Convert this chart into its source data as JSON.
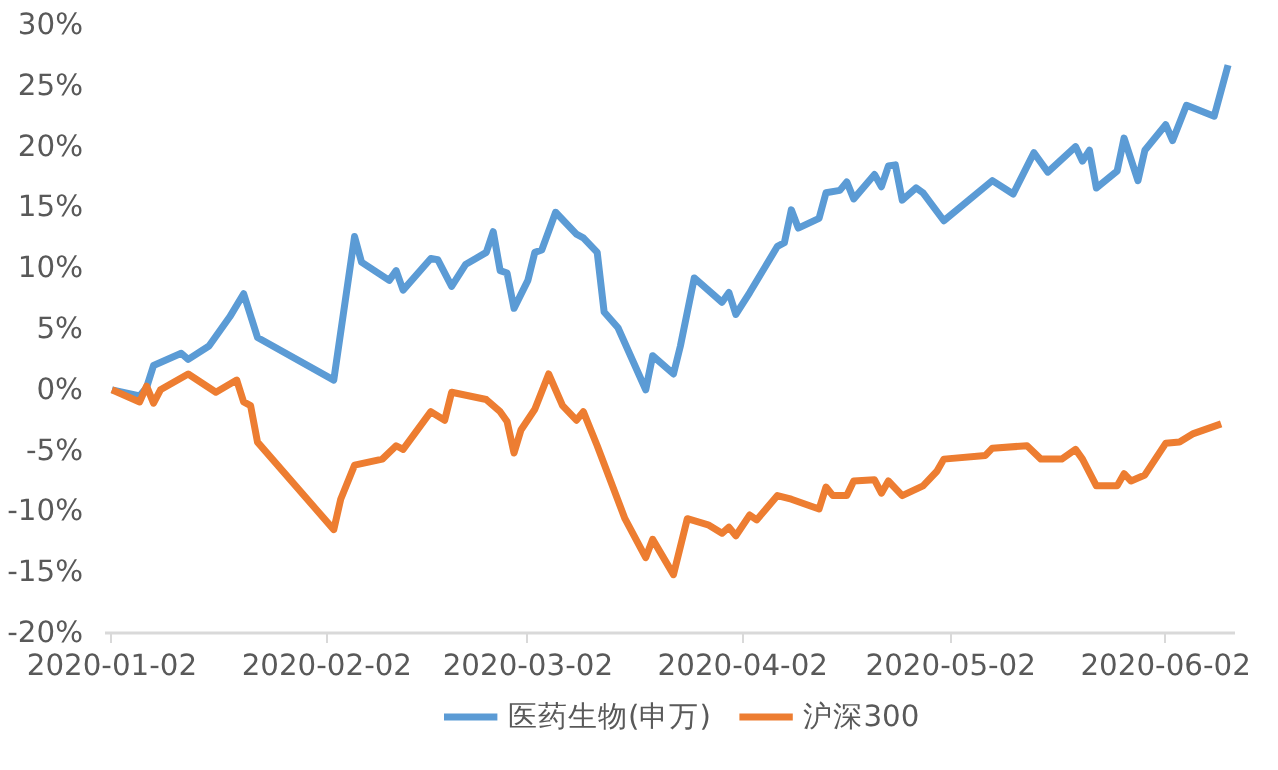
{
  "chart_data": {
    "type": "line",
    "ylim": [
      -20,
      30
    ],
    "yticks": [
      {
        "value": 30,
        "label": "30%"
      },
      {
        "value": 25,
        "label": "25%"
      },
      {
        "value": 20,
        "label": "20%"
      },
      {
        "value": 15,
        "label": "15%"
      },
      {
        "value": 10,
        "label": "10%"
      },
      {
        "value": 5,
        "label": "5%"
      },
      {
        "value": 0,
        "label": "0%"
      },
      {
        "value": -5,
        "label": "-5%"
      },
      {
        "value": -10,
        "label": "-10%"
      },
      {
        "value": -15,
        "label": "-15%"
      },
      {
        "value": -20,
        "label": "-20%"
      }
    ],
    "xlim": [
      "2020-01-01",
      "2020-06-12"
    ],
    "xticks": [
      {
        "value": "2020-01-02",
        "label": "2020-01-02"
      },
      {
        "value": "2020-02-02",
        "label": "2020-02-02"
      },
      {
        "value": "2020-03-02",
        "label": "2020-03-02"
      },
      {
        "value": "2020-04-02",
        "label": "2020-04-02"
      },
      {
        "value": "2020-05-02",
        "label": "2020-05-02"
      },
      {
        "value": "2020-06-02",
        "label": "2020-06-02"
      }
    ],
    "grid": false,
    "legend": "bottom",
    "marker": "none",
    "line_style": "solid",
    "series": [
      {
        "name": "医药生物(申万)",
        "color": "#5b9bd5",
        "x": [
          "2020-01-02",
          "2020-01-06",
          "2020-01-07",
          "2020-01-08",
          "2020-01-12",
          "2020-01-13",
          "2020-01-16",
          "2020-01-19",
          "2020-01-21",
          "2020-01-23",
          "2020-02-03",
          "2020-02-06",
          "2020-02-07",
          "2020-02-11",
          "2020-02-12",
          "2020-02-13",
          "2020-02-17",
          "2020-02-18",
          "2020-02-20",
          "2020-02-22",
          "2020-02-25",
          "2020-02-26",
          "2020-02-27",
          "2020-02-28",
          "2020-02-29",
          "2020-03-02",
          "2020-03-03",
          "2020-03-04",
          "2020-03-06",
          "2020-03-09",
          "2020-03-10",
          "2020-03-12",
          "2020-03-13",
          "2020-03-15",
          "2020-03-19",
          "2020-03-20",
          "2020-03-23",
          "2020-03-24",
          "2020-03-26",
          "2020-03-30",
          "2020-03-31",
          "2020-04-01",
          "2020-04-03",
          "2020-04-07",
          "2020-04-08",
          "2020-04-09",
          "2020-04-10",
          "2020-04-13",
          "2020-04-14",
          "2020-04-16",
          "2020-04-17",
          "2020-04-18",
          "2020-04-21",
          "2020-04-22",
          "2020-04-23",
          "2020-04-24",
          "2020-04-25",
          "2020-04-27",
          "2020-04-28",
          "2020-05-01",
          "2020-05-08",
          "2020-05-11",
          "2020-05-14",
          "2020-05-16",
          "2020-05-20",
          "2020-05-21",
          "2020-05-22",
          "2020-05-23",
          "2020-05-26",
          "2020-05-27",
          "2020-05-29",
          "2020-05-30",
          "2020-06-02",
          "2020-06-03",
          "2020-06-05",
          "2020-06-09",
          "2020-06-11"
        ],
        "values": [
          0,
          -0.5,
          0.2,
          2.0,
          3.0,
          2.5,
          3.6,
          6.0,
          7.9,
          4.3,
          0.8,
          12.6,
          10.5,
          9.0,
          9.8,
          8.2,
          10.8,
          10.7,
          8.5,
          10.3,
          11.3,
          13.0,
          9.8,
          9.6,
          6.7,
          9.0,
          11.3,
          11.5,
          14.6,
          12.8,
          12.5,
          11.3,
          6.4,
          5.1,
          0,
          2.8,
          1.3,
          3.6,
          9.2,
          7.2,
          8.0,
          6.2,
          8.0,
          11.8,
          12.1,
          14.8,
          13.3,
          14.1,
          16.2,
          16.4,
          17.1,
          15.7,
          17.7,
          16.7,
          18.4,
          18.5,
          15.6,
          16.6,
          16.2,
          13.9,
          17.2,
          16.1,
          19.5,
          17.9,
          20.0,
          18.8,
          19.7,
          16.6,
          18.0,
          20.7,
          17.2,
          19.7,
          21.8,
          20.5,
          23.4,
          22.5,
          26.7
        ]
      },
      {
        "name": "沪深300",
        "color": "#ed7d31",
        "x": [
          "2020-01-02",
          "2020-01-06",
          "2020-01-07",
          "2020-01-08",
          "2020-01-09",
          "2020-01-13",
          "2020-01-17",
          "2020-01-20",
          "2020-01-21",
          "2020-01-22",
          "2020-01-23",
          "2020-02-03",
          "2020-02-04",
          "2020-02-06",
          "2020-02-10",
          "2020-02-12",
          "2020-02-13",
          "2020-02-17",
          "2020-02-19",
          "2020-02-20",
          "2020-02-25",
          "2020-02-27",
          "2020-02-28",
          "2020-02-29",
          "2020-03-01",
          "2020-03-03",
          "2020-03-05",
          "2020-03-07",
          "2020-03-09",
          "2020-03-10",
          "2020-03-12",
          "2020-03-16",
          "2020-03-19",
          "2020-03-20",
          "2020-03-23",
          "2020-03-25",
          "2020-03-28",
          "2020-03-30",
          "2020-03-31",
          "2020-04-01",
          "2020-04-03",
          "2020-04-04",
          "2020-04-07",
          "2020-04-09",
          "2020-04-13",
          "2020-04-14",
          "2020-04-15",
          "2020-04-17",
          "2020-04-18",
          "2020-04-21",
          "2020-04-22",
          "2020-04-23",
          "2020-04-25",
          "2020-04-28",
          "2020-04-30",
          "2020-05-01",
          "2020-05-07",
          "2020-05-08",
          "2020-05-13",
          "2020-05-15",
          "2020-05-18",
          "2020-05-20",
          "2020-05-21",
          "2020-05-23",
          "2020-05-26",
          "2020-05-27",
          "2020-05-28",
          "2020-05-30",
          "2020-06-02",
          "2020-06-04",
          "2020-06-06",
          "2020-06-10"
        ],
        "values": [
          0,
          -1.0,
          0.3,
          -1.1,
          0,
          1.3,
          -0.2,
          0.8,
          -1.0,
          -1.3,
          -4.3,
          -11.5,
          -9.0,
          -6.2,
          -5.7,
          -4.6,
          -4.9,
          -1.8,
          -2.5,
          -0.2,
          -0.8,
          -1.8,
          -2.6,
          -5.2,
          -3.3,
          -1.6,
          1.3,
          -1.3,
          -2.5,
          -1.8,
          -4.6,
          -10.6,
          -13.8,
          -12.3,
          -15.2,
          -10.6,
          -11.1,
          -11.8,
          -11.3,
          -12.0,
          -10.3,
          -10.7,
          -8.7,
          -9.0,
          -9.8,
          -8.0,
          -8.7,
          -8.7,
          -7.5,
          -7.4,
          -8.5,
          -7.5,
          -8.7,
          -7.9,
          -6.7,
          -5.7,
          -5.4,
          -4.8,
          -4.6,
          -5.7,
          -5.7,
          -4.9,
          -5.7,
          -7.9,
          -7.9,
          -6.9,
          -7.5,
          -7.0,
          -4.4,
          -4.3,
          -3.6,
          -2.8
        ]
      }
    ]
  }
}
